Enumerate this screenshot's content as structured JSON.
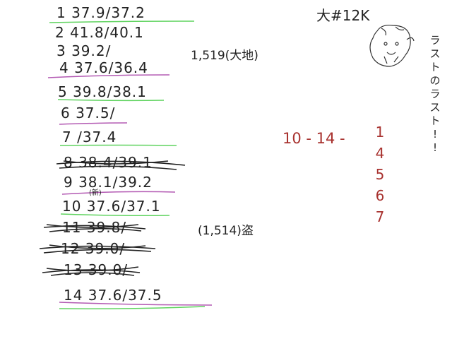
{
  "rows": [
    {
      "text": "1    37.9/37.2"
    },
    {
      "text": "2   41.8/40.1"
    },
    {
      "text": "3  39.2/"
    },
    {
      "text": "4 37.6/36.4"
    },
    {
      "text": "5 39.8/38.1"
    },
    {
      "text": "6  37.5/"
    },
    {
      "text": "7         /37.4"
    },
    {
      "text": "8  38.4/39.1"
    },
    {
      "text": "9  38.1/39.2"
    },
    {
      "text": "(新)"
    },
    {
      "text": "10  37.6/37.1"
    },
    {
      "text": "11 39.8/"
    },
    {
      "text": "12 39.0/"
    },
    {
      "text": "13 39.0/"
    },
    {
      "text": "14  37.6/37.5"
    }
  ],
  "notes": {
    "top_title": "大#12K",
    "mid_note": "1,519(大地)",
    "bottom_note": "(1,514)盗",
    "red_range": "10 - 14 -",
    "red_list": [
      "1",
      "4",
      "5",
      "6",
      "7"
    ],
    "vertical": [
      "ラ",
      "ス",
      "ト",
      "の",
      "ラ",
      "ス",
      "ト",
      "!",
      "!"
    ]
  },
  "colors": {
    "ink": "#222222",
    "green_underline": "#5fd35f",
    "purple_underline": "#b35ab3",
    "red_ink": "#a8322f"
  }
}
